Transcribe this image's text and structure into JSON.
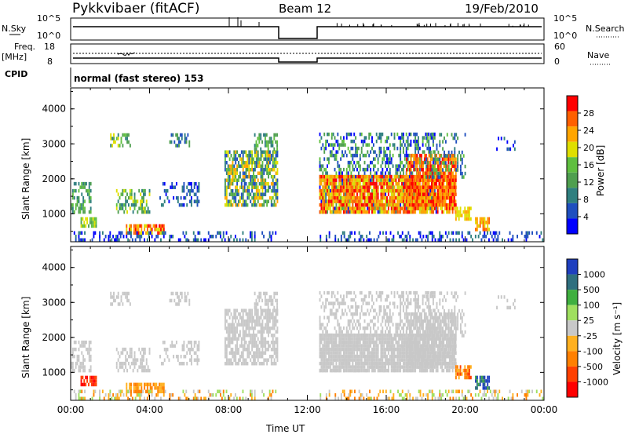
{
  "header": {
    "title": "Pykkvibaer (fitACF)",
    "beam": "Beam 12",
    "date": "19/Feb/2010"
  },
  "top_panels": {
    "nsky_label": "N.Sky",
    "nsky_ticks": [
      "10^5",
      "10^0"
    ],
    "nsearch_label": "N.Search",
    "nsearch_ticks": [
      "10^5",
      "10^0"
    ],
    "freq_label_line1": "Freq.",
    "freq_label_line2": "[MHz]",
    "freq_ticks": [
      "18",
      "8"
    ],
    "nave_label": "Nave",
    "nave_ticks": [
      "60",
      "0"
    ],
    "cpid_label": "CPID",
    "cpid_text": "normal (fast stereo) 153"
  },
  "colors": {
    "power_scale": [
      "#0000ff",
      "#1f4fbf",
      "#2f7f7f",
      "#4f9f4f",
      "#5fbf3f",
      "#dfdf00",
      "#ffa500",
      "#ff6000",
      "#ff0000"
    ],
    "velocity_scale": [
      "#1f3fbf",
      "#2f6f7f",
      "#3faf3f",
      "#9fdf5f",
      "#c8c8c8",
      "#ffb020",
      "#ff8000",
      "#ff4000",
      "#ff0000"
    ],
    "grey": "#c8c8c8"
  },
  "chart_data": [
    {
      "type": "heatmap",
      "name": "power",
      "xlabel": "",
      "ylabel": "Slant Range [km]",
      "yticks": [
        "1000",
        "2000",
        "3000",
        "4000"
      ],
      "ylim": [
        200,
        4600
      ],
      "colorbar_label": "Power [dB]",
      "colorbar_ticks": [
        "4",
        "8",
        "12",
        "16",
        "20",
        "24",
        "28"
      ],
      "data_gaps_ut": [
        [
          10.5,
          12.5
        ]
      ]
    },
    {
      "type": "heatmap",
      "name": "velocity",
      "xlabel": "Time UT",
      "ylabel": "Slant Range [km]",
      "yticks": [
        "1000",
        "2000",
        "3000",
        "4000"
      ],
      "ylim": [
        200,
        4600
      ],
      "xticks": [
        "00:00",
        "04:00",
        "08:00",
        "12:00",
        "16:00",
        "20:00",
        "00:00"
      ],
      "colorbar_label": "Velocity [m s⁻¹]",
      "colorbar_ticks": [
        "1000",
        "500",
        "100",
        "25",
        "-25",
        "-100",
        "-500",
        "-1000"
      ],
      "data_gaps_ut": [
        [
          10.5,
          12.5
        ]
      ]
    }
  ]
}
